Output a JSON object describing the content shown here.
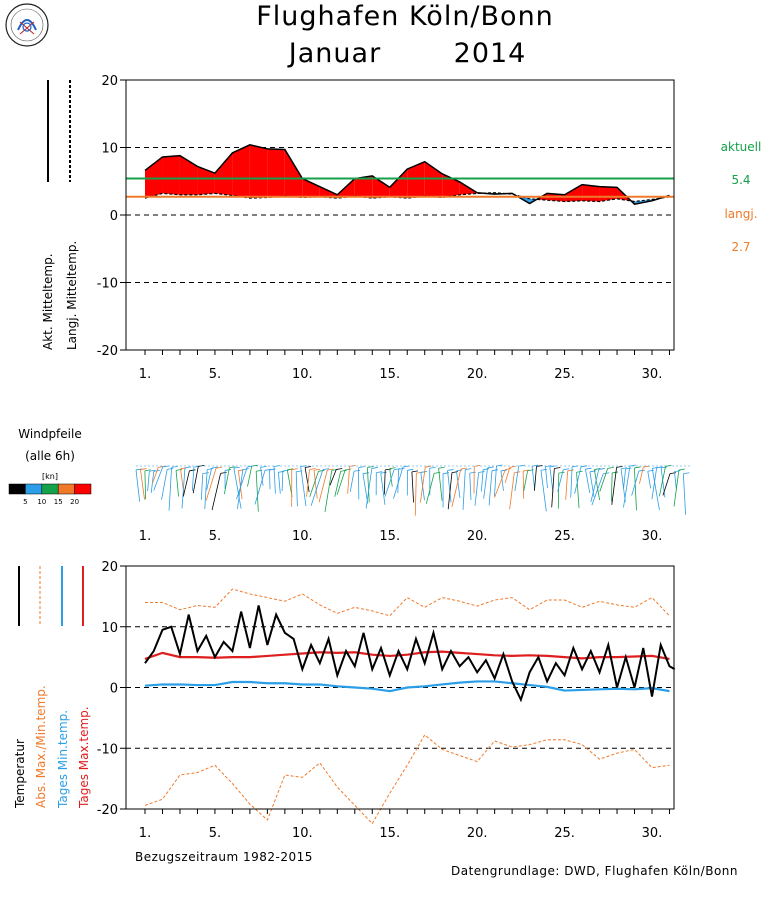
{
  "page": {
    "title_line1": "Flughafen Köln/Bonn",
    "title_month": "Januar",
    "title_year": "2014",
    "logo_text": "Wetterdienst",
    "footer_period": "Bezugszeitraum 1982-2015",
    "footer_source": "Datengrundlage: DWD, Flughafen Köln/Bonn"
  },
  "chart_data": [
    {
      "type": "area",
      "name": "mean-temperature",
      "y_axis_labels": [
        "Akt. Mitteltemp.",
        "Langj. Mitteltemp."
      ],
      "ylim": [
        -20,
        20
      ],
      "yticks": [
        "20",
        "10",
        "0",
        "-10",
        "-20"
      ],
      "ytick_values": [
        20,
        10,
        0,
        -10,
        -20
      ],
      "xticks": [
        "1.",
        "5.",
        "10.",
        "15.",
        "20.",
        "25.",
        "30."
      ],
      "xtick_values": [
        1,
        5,
        10,
        15,
        20,
        25,
        30
      ],
      "grid": "dashed-horizontal",
      "x": [
        1,
        2,
        3,
        4,
        5,
        6,
        7,
        8,
        9,
        10,
        11,
        12,
        13,
        14,
        15,
        16,
        17,
        18,
        19,
        20,
        21,
        22,
        23,
        24,
        25,
        26,
        27,
        28,
        29,
        30,
        31
      ],
      "actual": [
        6.6,
        8.6,
        8.8,
        7.2,
        6.2,
        9.2,
        10.4,
        9.8,
        9.7,
        5.4,
        4.2,
        3.0,
        5.4,
        5.8,
        4.1,
        6.8,
        7.9,
        6.1,
        4.9,
        3.3,
        3.1,
        3.2,
        1.7,
        3.2,
        3.0,
        4.5,
        4.2,
        4.1,
        1.6,
        2.1,
        2.9
      ],
      "longterm": [
        2.5,
        3.2,
        3.0,
        3.0,
        3.2,
        2.9,
        2.5,
        2.6,
        2.8,
        2.6,
        2.7,
        2.5,
        2.8,
        2.5,
        2.7,
        2.5,
        2.8,
        2.6,
        3.0,
        3.2,
        3.3,
        3.1,
        2.4,
        2.2,
        2.0,
        2.1,
        2.0,
        2.4,
        2.0,
        2.3,
        2.7
      ],
      "actual_mean": 5.4,
      "longterm_mean": 2.7,
      "label_actual": "aktuell",
      "value_actual": "5.4",
      "label_longterm": "langj.",
      "value_longterm": "2.7",
      "colors": {
        "warmer": "#ff0000",
        "colder": "#2a9ee6",
        "actual_line": "#15a04a",
        "longterm_line": "#f07a2a"
      }
    },
    {
      "type": "other",
      "name": "wind-arrows",
      "label": "Windpfeile",
      "sublabel": "(alle 6h)",
      "legend_unit": "[kn]",
      "legend_ticks": [
        "5",
        "10",
        "15",
        "20"
      ],
      "legend_colors": [
        "#000000",
        "#2a9ee6",
        "#15a04a",
        "#f07a2a",
        "#ff0000"
      ],
      "xticks": [
        "1.",
        "5.",
        "10.",
        "15.",
        "20.",
        "25.",
        "30."
      ],
      "xtick_values": [
        1,
        5,
        10,
        15,
        20,
        25,
        30
      ]
    },
    {
      "type": "line",
      "name": "daily-temperature",
      "y_axis_labels": [
        "Temperatur",
        "Abs. Max./Min.temp.",
        "Tages Min.temp.",
        "Tages Max.temp."
      ],
      "ylim": [
        -20,
        20
      ],
      "yticks": [
        "20",
        "10",
        "0",
        "-10",
        "-20"
      ],
      "ytick_values": [
        20,
        10,
        0,
        -10,
        -20
      ],
      "xticks": [
        "1.",
        "5.",
        "10.",
        "15.",
        "20.",
        "25.",
        "30."
      ],
      "xtick_values": [
        1,
        5,
        10,
        15,
        20,
        25,
        30
      ],
      "grid": "dashed-horizontal",
      "series": [
        {
          "key": "abs_max",
          "color": "#f07a2a",
          "x": [
            1,
            2,
            3,
            4,
            5,
            6,
            7,
            8,
            9,
            10,
            11,
            12,
            13,
            14,
            15,
            16,
            17,
            18,
            19,
            20,
            21,
            22,
            23,
            24,
            25,
            26,
            27,
            28,
            29,
            30,
            31
          ],
          "values": [
            14,
            14,
            12.8,
            13.5,
            13.2,
            16.2,
            15.4,
            14.8,
            14.2,
            15.4,
            13.6,
            12.2,
            13.2,
            12.6,
            11.8,
            14.8,
            13.2,
            14.8,
            14.2,
            13.4,
            14.4,
            14.8,
            12.8,
            14.4,
            14.4,
            13.2,
            14.2,
            13.6,
            13.2,
            14.8,
            11.8
          ]
        },
        {
          "key": "abs_min",
          "color": "#f07a2a",
          "x": [
            1,
            2,
            3,
            4,
            5,
            6,
            7,
            8,
            9,
            10,
            11,
            12,
            13,
            14,
            15,
            16,
            17,
            18,
            19,
            20,
            21,
            22,
            23,
            24,
            25,
            26,
            27,
            28,
            29,
            30,
            31
          ],
          "values": [
            -19.4,
            -18.4,
            -14.4,
            -14,
            -12.8,
            -15.8,
            -19.2,
            -21.8,
            -14.4,
            -14.8,
            -12.4,
            -16.4,
            -19.4,
            -22.4,
            -17.4,
            -12.8,
            -7.8,
            -10.2,
            -11.2,
            -12.2,
            -8.8,
            -9.8,
            -9.4,
            -8.6,
            -8.6,
            -9.4,
            -11.8,
            -10.8,
            -10.2,
            -13.2,
            -12.8
          ]
        },
        {
          "key": "mean_min",
          "color": "#2a9ee6",
          "x": [
            1,
            2,
            3,
            4,
            5,
            6,
            7,
            8,
            9,
            10,
            11,
            12,
            13,
            14,
            15,
            16,
            17,
            18,
            19,
            20,
            21,
            22,
            23,
            24,
            25,
            26,
            27,
            28,
            29,
            30,
            31
          ],
          "values": [
            0.3,
            0.5,
            0.5,
            0.4,
            0.4,
            0.9,
            0.9,
            0.7,
            0.7,
            0.5,
            0.5,
            0.2,
            0,
            -0.2,
            -0.6,
            0,
            0.2,
            0.5,
            0.8,
            1.0,
            1.0,
            0.7,
            0.4,
            0.1,
            -0.5,
            -0.4,
            -0.3,
            -0.2,
            -0.3,
            -0.1,
            -0.6
          ]
        },
        {
          "key": "mean_max",
          "color": "#e11e1e",
          "x": [
            1,
            2,
            3,
            4,
            5,
            6,
            7,
            8,
            9,
            10,
            11,
            12,
            13,
            14,
            15,
            16,
            17,
            18,
            19,
            20,
            21,
            22,
            23,
            24,
            25,
            26,
            27,
            28,
            29,
            30,
            31
          ],
          "values": [
            4.7,
            5.7,
            5.0,
            5.0,
            4.9,
            5.0,
            5.0,
            5.2,
            5.4,
            5.6,
            5.8,
            5.7,
            5.8,
            5.4,
            5.2,
            5.4,
            5.8,
            5.9,
            5.7,
            5.5,
            5.3,
            5.2,
            5.3,
            5.2,
            5.0,
            4.8,
            5.0,
            5.0,
            5.1,
            5.2,
            4.7
          ]
        },
        {
          "key": "current",
          "color": "#000000",
          "x": [
            1,
            1.5,
            2,
            2.5,
            3,
            3.5,
            4,
            4.5,
            5,
            5.5,
            6,
            6.5,
            7,
            7.5,
            8,
            8.5,
            9,
            9.5,
            10,
            10.5,
            11,
            11.5,
            12,
            12.5,
            13,
            13.5,
            14,
            14.5,
            15,
            15.5,
            16,
            16.5,
            17,
            17.5,
            18,
            18.5,
            19,
            19.5,
            20,
            20.5,
            21,
            21.5,
            22,
            22.5,
            23,
            23.5,
            24,
            24.5,
            25,
            25.5,
            26,
            26.5,
            27,
            27.5,
            28,
            28.5,
            29,
            29.5,
            30,
            30.5,
            31,
            31.3
          ],
          "values": [
            4,
            6,
            9.5,
            10,
            5.5,
            12,
            6,
            8.5,
            5,
            7.5,
            6,
            12.5,
            6.5,
            13.5,
            7,
            12,
            9,
            8,
            3,
            7,
            4,
            8,
            2,
            6,
            3.5,
            9,
            3,
            6.5,
            2,
            6,
            3,
            8,
            4,
            9,
            3,
            6,
            3.5,
            5,
            2.5,
            4.5,
            1.5,
            5.5,
            1,
            -2,
            2.5,
            5,
            1,
            4,
            2,
            6.5,
            3,
            6,
            2.5,
            7,
            0,
            5,
            0,
            6.5,
            -1.5,
            7,
            3.5,
            3
          ]
        }
      ]
    }
  ]
}
